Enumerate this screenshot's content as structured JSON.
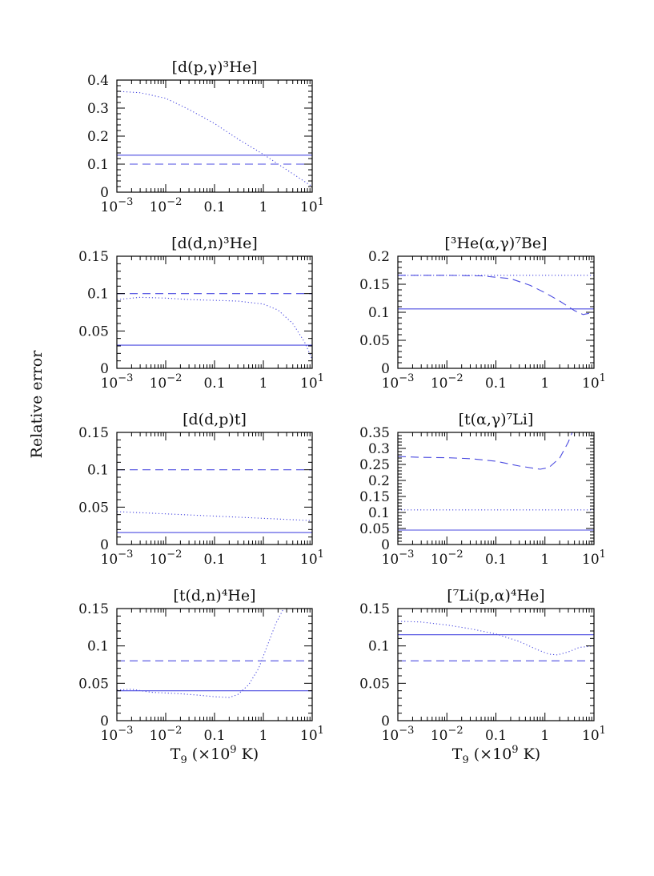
{
  "figure": {
    "y_axis_title": "Relative error",
    "x_axis_title_main": "T",
    "x_axis_title_sub": "9",
    "x_axis_title_unit_pre": " (×10",
    "x_axis_title_unit_exp": "9",
    "x_axis_title_unit_post": " K)",
    "line_color": "#4a4ae0",
    "axis_color": "#000000"
  },
  "chart_data": [
    {
      "type": "line",
      "id": "dpg",
      "title": "[d(p,γ)³He]",
      "xscale": "log",
      "xlim": [
        0.001,
        10
      ],
      "ylim": [
        0,
        0.4
      ],
      "yticks": [
        0,
        0.1,
        0.2,
        0.3,
        0.4
      ],
      "ytick_labels": [
        "0",
        "0.1",
        "0.2",
        "0.3",
        "0.4"
      ],
      "xticks": [
        0.001,
        0.01,
        0.1,
        1,
        10
      ],
      "xtick_labels": [
        {
          "base": "10",
          "exp": "−3"
        },
        {
          "base": "10",
          "exp": "−2"
        },
        {
          "base": "0.1",
          "exp": ""
        },
        {
          "base": "1",
          "exp": ""
        },
        {
          "base": "10",
          "exp": "1"
        }
      ],
      "series": [
        {
          "style": "solid",
          "x": [
            0.001,
            10
          ],
          "y": [
            0.132,
            0.132
          ]
        },
        {
          "style": "dashed",
          "x": [
            0.001,
            10
          ],
          "y": [
            0.1,
            0.1
          ]
        },
        {
          "style": "dotted",
          "x": [
            0.001,
            0.003,
            0.01,
            0.03,
            0.1,
            0.3,
            1,
            3,
            10
          ],
          "y": [
            0.36,
            0.355,
            0.335,
            0.295,
            0.245,
            0.19,
            0.135,
            0.08,
            0.02
          ]
        }
      ]
    },
    {
      "type": "line",
      "id": "ddn",
      "title": "[d(d,n)³He]",
      "xscale": "log",
      "xlim": [
        0.001,
        10
      ],
      "ylim": [
        0,
        0.15
      ],
      "yticks": [
        0,
        0.05,
        0.1,
        0.15
      ],
      "ytick_labels": [
        "0",
        "0.05",
        "0.1",
        "0.15"
      ],
      "xticks": [
        0.001,
        0.01,
        0.1,
        1,
        10
      ],
      "xtick_labels": [
        {
          "base": "10",
          "exp": "−3"
        },
        {
          "base": "10",
          "exp": "−2"
        },
        {
          "base": "0.1",
          "exp": ""
        },
        {
          "base": "1",
          "exp": ""
        },
        {
          "base": "10",
          "exp": "1"
        }
      ],
      "series": [
        {
          "style": "solid",
          "x": [
            0.001,
            10
          ],
          "y": [
            0.031,
            0.031
          ]
        },
        {
          "style": "dashed",
          "x": [
            0.001,
            10
          ],
          "y": [
            0.1,
            0.1
          ]
        },
        {
          "style": "dotted",
          "x": [
            0.001,
            0.003,
            0.01,
            0.03,
            0.1,
            0.3,
            1,
            2,
            4,
            7,
            10
          ],
          "y": [
            0.092,
            0.095,
            0.094,
            0.092,
            0.091,
            0.09,
            0.086,
            0.078,
            0.06,
            0.035,
            0.012
          ]
        }
      ]
    },
    {
      "type": "line",
      "id": "he3ag",
      "title": "[³He(α,γ)⁷Be]",
      "xscale": "log",
      "xlim": [
        0.001,
        10
      ],
      "ylim": [
        0,
        0.2
      ],
      "yticks": [
        0,
        0.05,
        0.1,
        0.15,
        0.2
      ],
      "ytick_labels": [
        "0",
        "0.05",
        "0.1",
        "0.15",
        "0.2"
      ],
      "xticks": [
        0.001,
        0.01,
        0.1,
        1,
        10
      ],
      "xtick_labels": [
        {
          "base": "10",
          "exp": "−3"
        },
        {
          "base": "10",
          "exp": "−2"
        },
        {
          "base": "0.1",
          "exp": ""
        },
        {
          "base": "1",
          "exp": ""
        },
        {
          "base": "10",
          "exp": "1"
        }
      ],
      "series": [
        {
          "style": "solid",
          "x": [
            0.001,
            10
          ],
          "y": [
            0.106,
            0.106
          ]
        },
        {
          "style": "dashed",
          "x": [
            0.001,
            0.01,
            0.05,
            0.2,
            0.5,
            1,
            2,
            4,
            6,
            10
          ],
          "y": [
            0.166,
            0.166,
            0.165,
            0.16,
            0.148,
            0.135,
            0.12,
            0.103,
            0.096,
            0.1
          ]
        },
        {
          "style": "dotted",
          "x": [
            0.001,
            10
          ],
          "y": [
            0.166,
            0.166
          ]
        }
      ]
    },
    {
      "type": "line",
      "id": "ddp",
      "title": "[d(d,p)t]",
      "xscale": "log",
      "xlim": [
        0.001,
        10
      ],
      "ylim": [
        0,
        0.15
      ],
      "yticks": [
        0,
        0.05,
        0.1,
        0.15
      ],
      "ytick_labels": [
        "0",
        "0.05",
        "0.1",
        "0.15"
      ],
      "xticks": [
        0.001,
        0.01,
        0.1,
        1,
        10
      ],
      "xtick_labels": [
        {
          "base": "10",
          "exp": "−3"
        },
        {
          "base": "10",
          "exp": "−2"
        },
        {
          "base": "0.1",
          "exp": ""
        },
        {
          "base": "1",
          "exp": ""
        },
        {
          "base": "10",
          "exp": "1"
        }
      ],
      "series": [
        {
          "style": "solid",
          "x": [
            0.001,
            10
          ],
          "y": [
            0.016,
            0.016
          ]
        },
        {
          "style": "dashed",
          "x": [
            0.001,
            10
          ],
          "y": [
            0.1,
            0.1
          ]
        },
        {
          "style": "dotted",
          "x": [
            0.001,
            0.01,
            0.1,
            1,
            10
          ],
          "y": [
            0.044,
            0.041,
            0.038,
            0.035,
            0.032
          ]
        }
      ]
    },
    {
      "type": "line",
      "id": "tag",
      "title": "[t(α,γ)⁷Li]",
      "xscale": "log",
      "xlim": [
        0.001,
        10
      ],
      "ylim": [
        0,
        0.35
      ],
      "yticks": [
        0,
        0.05,
        0.1,
        0.15,
        0.2,
        0.25,
        0.3,
        0.35
      ],
      "ytick_labels": [
        "0",
        "0.05",
        "0.1",
        "0.15",
        "0.2",
        "0.25",
        "0.3",
        "0.35"
      ],
      "xticks": [
        0.001,
        0.01,
        0.1,
        1,
        10
      ],
      "xtick_labels": [
        {
          "base": "10",
          "exp": "−3"
        },
        {
          "base": "10",
          "exp": "−2"
        },
        {
          "base": "0.1",
          "exp": ""
        },
        {
          "base": "1",
          "exp": ""
        },
        {
          "base": "10",
          "exp": "1"
        }
      ],
      "series": [
        {
          "style": "solid",
          "x": [
            0.001,
            10
          ],
          "y": [
            0.045,
            0.045
          ]
        },
        {
          "style": "dashed",
          "x": [
            0.001,
            0.003,
            0.01,
            0.03,
            0.1,
            0.3,
            0.8,
            1.2,
            2,
            3,
            3.6
          ],
          "y": [
            0.275,
            0.272,
            0.271,
            0.268,
            0.26,
            0.245,
            0.235,
            0.24,
            0.27,
            0.32,
            0.35
          ]
        },
        {
          "style": "dotted",
          "x": [
            0.001,
            10
          ],
          "y": [
            0.108,
            0.108
          ]
        }
      ]
    },
    {
      "type": "line",
      "id": "tdn",
      "title": "[t(d,n)⁴He]",
      "xscale": "log",
      "xlim": [
        0.001,
        10
      ],
      "ylim": [
        0,
        0.15
      ],
      "yticks": [
        0,
        0.05,
        0.1,
        0.15
      ],
      "ytick_labels": [
        "0",
        "0.05",
        "0.1",
        "0.15"
      ],
      "xticks": [
        0.001,
        0.01,
        0.1,
        1,
        10
      ],
      "xtick_labels": [
        {
          "base": "10",
          "exp": "−3"
        },
        {
          "base": "10",
          "exp": "−2"
        },
        {
          "base": "0.1",
          "exp": ""
        },
        {
          "base": "1",
          "exp": ""
        },
        {
          "base": "10",
          "exp": "1"
        }
      ],
      "series": [
        {
          "style": "solid",
          "x": [
            0.001,
            10
          ],
          "y": [
            0.04,
            0.04
          ]
        },
        {
          "style": "dashed",
          "x": [
            0.001,
            10
          ],
          "y": [
            0.08,
            0.08
          ]
        },
        {
          "style": "dotted",
          "x": [
            0.001,
            0.002,
            0.005,
            0.02,
            0.05,
            0.1,
            0.2,
            0.3,
            0.5,
            0.8,
            1.2,
            1.8,
            2.6
          ],
          "y": [
            0.041,
            0.042,
            0.038,
            0.036,
            0.034,
            0.032,
            0.031,
            0.035,
            0.048,
            0.07,
            0.1,
            0.13,
            0.15
          ]
        }
      ]
    },
    {
      "type": "line",
      "id": "li7pa",
      "title": "[⁷Li(p,α)⁴He]",
      "xscale": "log",
      "xlim": [
        0.001,
        10
      ],
      "ylim": [
        0,
        0.15
      ],
      "yticks": [
        0,
        0.05,
        0.1,
        0.15
      ],
      "ytick_labels": [
        "0",
        "0.05",
        "0.1",
        "0.15"
      ],
      "xticks": [
        0.001,
        0.01,
        0.1,
        1,
        10
      ],
      "xtick_labels": [
        {
          "base": "10",
          "exp": "−3"
        },
        {
          "base": "10",
          "exp": "−2"
        },
        {
          "base": "0.1",
          "exp": ""
        },
        {
          "base": "1",
          "exp": ""
        },
        {
          "base": "10",
          "exp": "1"
        }
      ],
      "series": [
        {
          "style": "solid",
          "x": [
            0.001,
            10
          ],
          "y": [
            0.115,
            0.115
          ]
        },
        {
          "style": "dashed",
          "x": [
            0.001,
            10
          ],
          "y": [
            0.08,
            0.08
          ]
        },
        {
          "style": "dotted",
          "x": [
            0.001,
            0.003,
            0.01,
            0.03,
            0.1,
            0.3,
            0.7,
            1.2,
            1.8,
            3,
            5,
            10
          ],
          "y": [
            0.133,
            0.132,
            0.128,
            0.123,
            0.116,
            0.106,
            0.095,
            0.089,
            0.088,
            0.092,
            0.098,
            0.1
          ]
        }
      ]
    }
  ]
}
